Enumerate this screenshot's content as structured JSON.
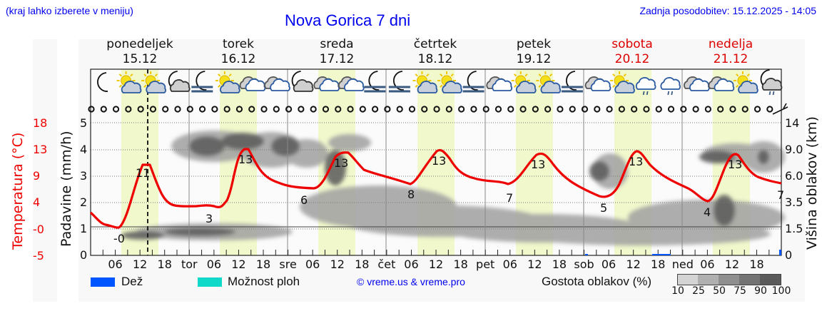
{
  "header": {
    "hint": "(kraj lahko izberete v meniju)",
    "title": "Nova Gorica 7 dni",
    "updated": "Zadnja posodobitev: 15.12.2025 - 14:05"
  },
  "days": [
    {
      "name": "ponedeljek",
      "date": "15.12",
      "weekend": false,
      "short": ""
    },
    {
      "name": "torek",
      "date": "16.12",
      "weekend": false,
      "short": "tor"
    },
    {
      "name": "sreda",
      "date": "17.12",
      "weekend": false,
      "short": "sre"
    },
    {
      "name": "četrtek",
      "date": "18.12",
      "weekend": false,
      "short": "čet"
    },
    {
      "name": "petek",
      "date": "19.12",
      "weekend": false,
      "short": "pet"
    },
    {
      "name": "sobota",
      "date": "20.12",
      "weekend": true,
      "short": "sob"
    },
    {
      "name": "nedelja",
      "date": "21.12",
      "weekend": true,
      "short": "ned"
    }
  ],
  "weather_icons": [
    "moon-icon",
    "sun-cloud-icon",
    "sun-cloud-icon",
    "moon-cloud-icon",
    "moon-fog-icon",
    "sun-cloud-icon",
    "cloud-icon",
    "cloud-icon",
    "moon-cloud-icon",
    "cloud-icon",
    "cloud-icon",
    "moon-fog-icon",
    "moon-fog-icon",
    "sun-cloud-icon",
    "sun-cloud-icon",
    "moon-fog-icon",
    "cloud-icon",
    "sun-cloud-icon",
    "sun-cloud-icon",
    "moon-fog-icon",
    "cloud-icon",
    "sun-cloud-icon",
    "cloud-drizzle-icon",
    "cloud-drizzle-icon",
    "cloud-icon",
    "cloud-icon",
    "sun-cloud-icon",
    "moon-drizzle-icon"
  ],
  "axes": {
    "left_temp_label": "Temperatura (°C)",
    "left_rain_label": "Padavine (mm/h)",
    "right_label": "Višina oblakov (km)",
    "temp_ticks": [
      "18",
      "13",
      "9",
      "4",
      "-0",
      "-5"
    ],
    "rain_ticks": [
      "5",
      "4",
      "3",
      "2",
      "1",
      "0"
    ],
    "cloud_ticks": [
      "14",
      "9.0",
      "6.0",
      "3.5",
      "1.5",
      "0"
    ],
    "x_ticks": [
      "06",
      "12",
      "18",
      "tor",
      "06",
      "12",
      "18",
      "sre",
      "06",
      "12",
      "18",
      "čet",
      "06",
      "12",
      "18",
      "pet",
      "06",
      "12",
      "18",
      "sob",
      "06",
      "12",
      "18",
      "ned",
      "06",
      "12",
      "18"
    ]
  },
  "legend": {
    "rain": "Dež",
    "showers": "Možnost ploh",
    "copyright": "© vreme.us & vreme.pro",
    "cloud_density": "Gostota oblakov (%)",
    "cloud_scale": [
      "10",
      "25",
      "50",
      "75",
      "90",
      "100"
    ]
  },
  "colors": {
    "temperature": "#ee0000",
    "rain": "#0055ff",
    "showers": "#11d9c9",
    "daylight": "#f0f8cc",
    "title": "#0000ee",
    "weekend": "#dd0000"
  },
  "chart_data": {
    "type": "line",
    "title": "Nova Gorica 7 dni",
    "xlabel": "",
    "ylabel": "Temperatura (°C)",
    "ylim": [
      -5,
      18
    ],
    "grid": true,
    "x": [
      "Mon 00",
      "Mon 06",
      "Mon 12",
      "Mon 18",
      "Tue 00",
      "Tue 06",
      "Tue 12",
      "Tue 18",
      "Wed 00",
      "Wed 06",
      "Wed 12",
      "Wed 18",
      "Thu 00",
      "Thu 06",
      "Thu 12",
      "Thu 18",
      "Fri 00",
      "Fri 06",
      "Fri 12",
      "Fri 18",
      "Sat 00",
      "Sat 06",
      "Sat 12",
      "Sat 18",
      "Sun 00",
      "Sun 06",
      "Sun 12",
      "Sun 18"
    ],
    "series": [
      {
        "name": "Temperatura (°C)",
        "values": [
          1.5,
          -0.2,
          11,
          4,
          3.5,
          3,
          13,
          7,
          6,
          6,
          13,
          9.5,
          9,
          8,
          13,
          9,
          8,
          7,
          12.5,
          9,
          6.5,
          5,
          13,
          9,
          7,
          4,
          12.5,
          8
        ]
      }
    ],
    "annotations": [
      {
        "label": "-0",
        "at": "Mon 06"
      },
      {
        "label": "11",
        "at": "Mon 14"
      },
      {
        "label": "3",
        "at": "Tue 09"
      },
      {
        "label": "13",
        "at": "Tue 13"
      },
      {
        "label": "6",
        "at": "Wed 06"
      },
      {
        "label": "13",
        "at": "Wed 13"
      },
      {
        "label": "8",
        "at": "Thu 06"
      },
      {
        "label": "13",
        "at": "Thu 13"
      },
      {
        "label": "7",
        "at": "Fri 06"
      },
      {
        "label": "13",
        "at": "Fri 13"
      },
      {
        "label": "5",
        "at": "Sat 06"
      },
      {
        "label": "13",
        "at": "Sat 13"
      },
      {
        "label": "4",
        "at": "Sun 06"
      },
      {
        "label": "13",
        "at": "Sun 13"
      },
      {
        "label": "7",
        "at": "Sun 24"
      }
    ],
    "secondary_axes": {
      "precipitation_mm_h": {
        "range": [
          0,
          5
        ],
        "ticks": [
          0,
          1,
          2,
          3,
          4,
          5
        ]
      },
      "cloud_height_km": {
        "ticks": [
          "0",
          "1.5",
          "3.5",
          "6.0",
          "9.0",
          "14"
        ]
      }
    },
    "precipitation": {
      "rain_mm_h": "trace amounts only (Sat & Sun evening)"
    },
    "now_marker": "Mon 14:05"
  }
}
